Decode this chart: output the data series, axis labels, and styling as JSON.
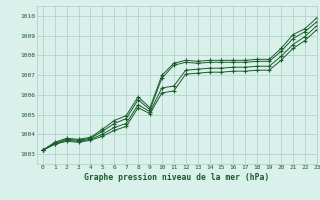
{
  "title": "Graphe pression niveau de la mer (hPa)",
  "xlim": [
    -0.5,
    23
  ],
  "ylim": [
    1002.5,
    1010.5
  ],
  "yticks": [
    1003,
    1004,
    1005,
    1006,
    1007,
    1008,
    1009,
    1010
  ],
  "xticks": [
    0,
    1,
    2,
    3,
    4,
    5,
    6,
    7,
    8,
    9,
    10,
    11,
    12,
    13,
    14,
    15,
    16,
    17,
    18,
    19,
    20,
    21,
    22,
    23
  ],
  "bg_color": "#daf0eb",
  "grid_color": "#aacfc7",
  "line_color": "#1a5c2a",
  "series1": [
    1003.2,
    1003.6,
    1003.8,
    1003.75,
    1003.85,
    1004.25,
    1004.7,
    1004.95,
    1005.9,
    1005.35,
    1007.0,
    1007.6,
    1007.75,
    1007.7,
    1007.75,
    1007.75,
    1007.75,
    1007.75,
    1007.8,
    1007.8,
    1008.35,
    1009.05,
    1009.35,
    1009.9
  ],
  "series2": [
    1003.2,
    1003.55,
    1003.75,
    1003.7,
    1003.8,
    1004.15,
    1004.55,
    1004.8,
    1005.75,
    1005.25,
    1006.85,
    1007.5,
    1007.65,
    1007.6,
    1007.65,
    1007.65,
    1007.65,
    1007.65,
    1007.7,
    1007.7,
    1008.2,
    1008.85,
    1009.2,
    1009.7
  ],
  "series3": [
    1003.2,
    1003.5,
    1003.7,
    1003.65,
    1003.75,
    1004.0,
    1004.35,
    1004.55,
    1005.5,
    1005.15,
    1006.35,
    1006.45,
    1007.25,
    1007.3,
    1007.35,
    1007.35,
    1007.4,
    1007.4,
    1007.45,
    1007.45,
    1007.95,
    1008.55,
    1008.95,
    1009.5
  ],
  "series4": [
    1003.2,
    1003.5,
    1003.65,
    1003.6,
    1003.7,
    1003.9,
    1004.2,
    1004.4,
    1005.35,
    1005.05,
    1006.1,
    1006.2,
    1007.05,
    1007.1,
    1007.15,
    1007.15,
    1007.2,
    1007.2,
    1007.25,
    1007.25,
    1007.75,
    1008.35,
    1008.75,
    1009.3
  ]
}
